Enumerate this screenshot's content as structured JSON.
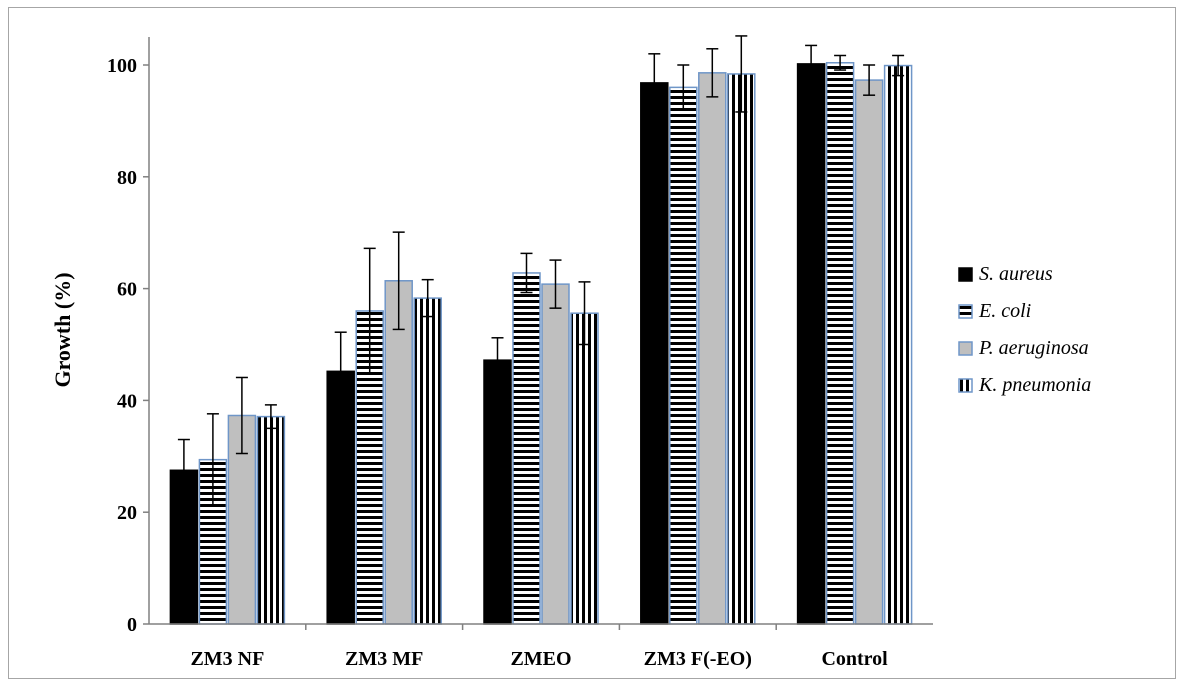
{
  "chart_data": {
    "type": "bar",
    "title": "",
    "xlabel": "",
    "ylabel": "Growth (%)",
    "ylim": [
      0,
      105
    ],
    "yticks": [
      0,
      20,
      40,
      60,
      80,
      100
    ],
    "categories": [
      "ZM3 NF",
      "ZM3 MF",
      "ZMEO",
      "ZM3 F(-EO)",
      "Control"
    ],
    "grid": false,
    "legend_position": "right",
    "series": [
      {
        "name": "S. aureus",
        "pattern": "solid-black",
        "values": [
          27.5,
          45.2,
          47.2,
          96.8,
          100.2
        ],
        "errors": [
          5.5,
          7.0,
          4.0,
          5.2,
          3.3
        ]
      },
      {
        "name": "E. coli",
        "pattern": "horizontal-stripes",
        "values": [
          29.4,
          56.0,
          62.8,
          96.0,
          100.4
        ],
        "errors": [
          8.2,
          11.2,
          3.5,
          4.0,
          1.3
        ]
      },
      {
        "name": "P. aeruginosa",
        "pattern": "solid-gray",
        "values": [
          37.3,
          61.4,
          60.8,
          98.6,
          97.3
        ],
        "errors": [
          6.8,
          8.7,
          4.3,
          4.3,
          2.7
        ]
      },
      {
        "name": "K. pneumonia",
        "pattern": "vertical-stripes",
        "values": [
          37.1,
          58.3,
          55.6,
          98.4,
          99.9
        ],
        "errors": [
          2.1,
          3.3,
          5.6,
          6.8,
          1.8
        ]
      }
    ]
  },
  "colors": {
    "solid_black": "#000000",
    "gray_fill": "#bfbfbf",
    "bar_border": "#6f96c8",
    "stripe": "#000000"
  }
}
